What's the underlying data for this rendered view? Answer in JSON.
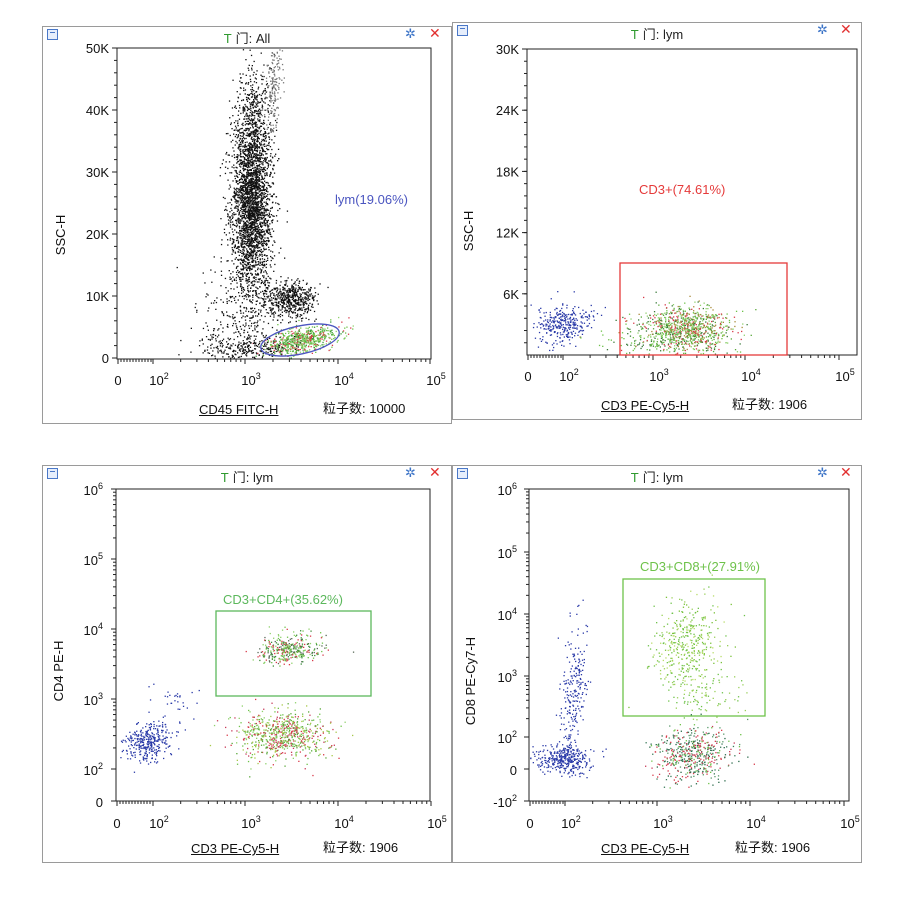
{
  "panels": [
    {
      "id": "p1",
      "title_letter": "T",
      "title_rest": "门: All",
      "x_label": "CD45 FITC-H",
      "y_label": "SSC-H",
      "count_text": "粒子数: 10000",
      "chart_data": {
        "type": "scatter",
        "title": "",
        "xlabel": "CD45 FITC-H",
        "ylabel": "SSC-H",
        "x_scale": "log",
        "y_scale": "linear",
        "ylim": [
          0,
          50000
        ],
        "x_ticks": [
          "0",
          "10^2",
          "10^3",
          "10^4",
          "10^5"
        ],
        "y_ticks": [
          "0",
          "10K",
          "20K",
          "30K",
          "40K",
          "50K"
        ],
        "gates": [
          {
            "label": "lym(19.06%)",
            "shape": "ellipse",
            "color": "#4a55c0"
          }
        ],
        "populations": [
          {
            "color": "#111111",
            "x_center": "10^3",
            "y_center": 24000
          },
          {
            "color": "#111111",
            "x_center": "3x10^3",
            "y_center": 9000
          },
          {
            "color": "#6ec24a",
            "x_center": "4x10^3",
            "y_center": 2500
          }
        ]
      }
    },
    {
      "id": "p2",
      "title_letter": "T",
      "title_rest": "门: lym",
      "x_label": "CD3 PE-Cy5-H",
      "y_label": "SSC-H",
      "count_text": "粒子数: 1906",
      "chart_data": {
        "type": "scatter",
        "title": "",
        "xlabel": "CD3 PE-Cy5-H",
        "ylabel": "SSC-H",
        "x_scale": "log",
        "y_scale": "linear",
        "ylim": [
          0,
          30000
        ],
        "x_ticks": [
          "0",
          "10^2",
          "10^3",
          "10^4",
          "10^5"
        ],
        "y_ticks": [
          "6K",
          "12K",
          "18K",
          "24K",
          "30K"
        ],
        "gates": [
          {
            "label": "CD3+(74.61%)",
            "shape": "rectangle",
            "color": "#e53a3a"
          }
        ],
        "populations": [
          {
            "color": "#2a3aa8",
            "x_center": "10^2",
            "y_center": 3000
          },
          {
            "color": "#6ec24a",
            "x_center": "2.5x10^3",
            "y_center": 2700
          }
        ]
      }
    },
    {
      "id": "p3",
      "title_letter": "T",
      "title_rest": "门: lym",
      "x_label": "CD3 PE-Cy5-H",
      "y_label": "CD4 PE-H",
      "count_text": "粒子数: 1906",
      "chart_data": {
        "type": "scatter",
        "title": "",
        "xlabel": "CD3 PE-Cy5-H",
        "ylabel": "CD4 PE-H",
        "x_scale": "log",
        "y_scale": "log",
        "x_ticks": [
          "0",
          "10^2",
          "10^3",
          "10^4",
          "10^5"
        ],
        "y_ticks": [
          "0",
          "10^2",
          "10^3",
          "10^4",
          "10^5",
          "10^6"
        ],
        "gates": [
          {
            "label": "CD3+CD4+(35.62%)",
            "shape": "rectangle",
            "color": "#5cb85c"
          }
        ],
        "populations": [
          {
            "color": "#2a3aa8",
            "x_center": "10^2",
            "y_center": "2x10^2"
          },
          {
            "color": "#6ec24a",
            "x_center": "2.5x10^3",
            "y_center": "5x10^3"
          },
          {
            "color": "#6ec24a",
            "x_center": "2.5x10^3",
            "y_center": "3x10^2"
          }
        ]
      }
    },
    {
      "id": "p4",
      "title_letter": "T",
      "title_rest": "门: lym",
      "x_label": "CD3 PE-Cy5-H",
      "y_label": "CD8 PE-Cy7-H",
      "count_text": "粒子数: 1906",
      "chart_data": {
        "type": "scatter",
        "title": "",
        "xlabel": "CD3 PE-Cy5-H",
        "ylabel": "CD8 PE-Cy7-H",
        "x_scale": "log",
        "y_scale": "log",
        "x_ticks": [
          "0",
          "10^2",
          "10^3",
          "10^4",
          "10^5"
        ],
        "y_ticks": [
          "-10^2",
          "0",
          "10^2",
          "10^3",
          "10^4",
          "10^5",
          "10^6"
        ],
        "gates": [
          {
            "label": "CD3+CD8+(27.91%)",
            "shape": "rectangle",
            "color": "#6ec24a"
          }
        ],
        "populations": [
          {
            "color": "#2a3aa8",
            "x_center": "10^2",
            "y_center": 40
          },
          {
            "color": "#9ad05a",
            "x_center": "2x10^3",
            "y_center": "3x10^3"
          },
          {
            "color": "#3a7a5a",
            "x_center": "3x10^3",
            "y_center": 40
          }
        ]
      }
    }
  ],
  "colors": {
    "black_dots": "#111111",
    "green_dots": "#6ec24a",
    "red_dots": "#d83a4a",
    "blue_dots": "#2a3aa8",
    "lym_gate": "#4a55c0",
    "cd3_gate": "#e53a3a",
    "cd4_gate": "#5cb85c",
    "cd8_gate": "#6ec24a"
  }
}
